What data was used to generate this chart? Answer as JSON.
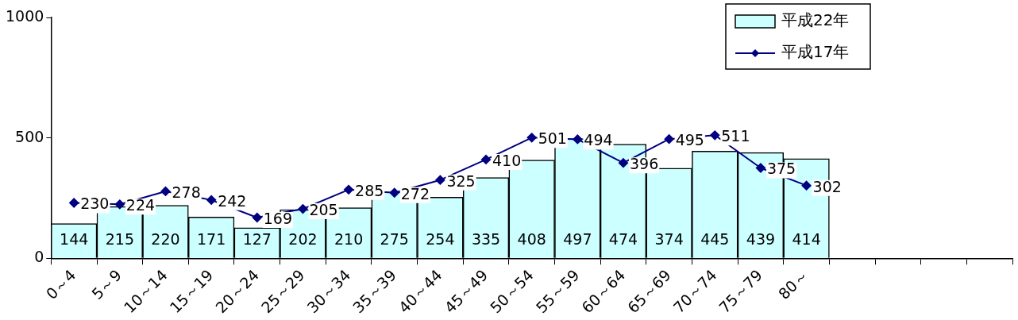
{
  "chart_data": {
    "type": "bar",
    "categories": [
      "0～4",
      "5～9",
      "10～14",
      "15～19",
      "20～24",
      "25～29",
      "30～34",
      "35～39",
      "40～44",
      "45～49",
      "50～54",
      "55～59",
      "60～64",
      "65～69",
      "70～74",
      "75～79",
      "80～",
      null,
      null,
      null,
      null
    ],
    "series": [
      {
        "name": "平成22年",
        "color": "#ccffff",
        "values": [
          144,
          215,
          220,
          171,
          127,
          202,
          210,
          275,
          254,
          335,
          408,
          497,
          474,
          374,
          445,
          439,
          414,
          null,
          null,
          null,
          null
        ]
      },
      {
        "name": "平成17年",
        "type": "line",
        "color": "#000080",
        "values": [
          230,
          224,
          278,
          242,
          169,
          205,
          285,
          272,
          325,
          410,
          501,
          494,
          396,
          495,
          511,
          375,
          302,
          null,
          null,
          null,
          null
        ]
      }
    ],
    "ylim": [
      0,
      1000
    ],
    "yticks": [
      0,
      500,
      1000
    ],
    "grid": false,
    "legend": "top right",
    "marker": "diamond",
    "data_labels": true
  }
}
